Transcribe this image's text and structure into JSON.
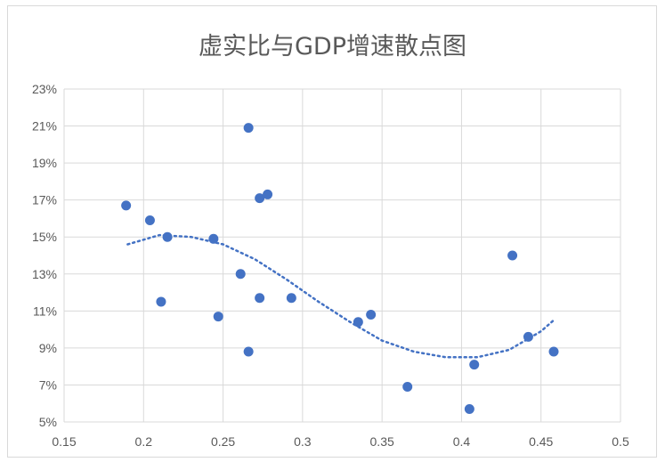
{
  "chart_data": {
    "type": "scatter",
    "title": "虚实比与GDP增速散点图",
    "xlim": [
      0.15,
      0.5
    ],
    "ylim": [
      0.05,
      0.23
    ],
    "x_ticks": [
      "0.15",
      "0.2",
      "0.25",
      "0.3",
      "0.35",
      "0.4",
      "0.45",
      "0.5"
    ],
    "y_ticks": [
      "5%",
      "7%",
      "9%",
      "11%",
      "13%",
      "15%",
      "17%",
      "19%",
      "21%",
      "23%"
    ],
    "grid": true,
    "legend": "none",
    "colors": {
      "points": "#4472c4",
      "trendline": "#4472c4",
      "grid": "#d9d9d9"
    },
    "points": [
      {
        "x": 0.189,
        "y": 0.167
      },
      {
        "x": 0.204,
        "y": 0.159
      },
      {
        "x": 0.215,
        "y": 0.15
      },
      {
        "x": 0.211,
        "y": 0.115
      },
      {
        "x": 0.244,
        "y": 0.149
      },
      {
        "x": 0.247,
        "y": 0.107
      },
      {
        "x": 0.261,
        "y": 0.13
      },
      {
        "x": 0.266,
        "y": 0.209
      },
      {
        "x": 0.266,
        "y": 0.088
      },
      {
        "x": 0.273,
        "y": 0.171
      },
      {
        "x": 0.278,
        "y": 0.173
      },
      {
        "x": 0.273,
        "y": 0.117
      },
      {
        "x": 0.293,
        "y": 0.117
      },
      {
        "x": 0.335,
        "y": 0.104
      },
      {
        "x": 0.343,
        "y": 0.108
      },
      {
        "x": 0.366,
        "y": 0.069
      },
      {
        "x": 0.405,
        "y": 0.057
      },
      {
        "x": 0.408,
        "y": 0.081
      },
      {
        "x": 0.432,
        "y": 0.14
      },
      {
        "x": 0.442,
        "y": 0.096
      },
      {
        "x": 0.458,
        "y": 0.088
      }
    ],
    "trendline": {
      "type": "polynomial",
      "x": [
        0.19,
        0.21,
        0.23,
        0.25,
        0.27,
        0.29,
        0.31,
        0.33,
        0.35,
        0.37,
        0.39,
        0.41,
        0.43,
        0.45,
        0.458
      ],
      "y": [
        0.146,
        0.151,
        0.15,
        0.146,
        0.138,
        0.127,
        0.115,
        0.104,
        0.094,
        0.088,
        0.085,
        0.085,
        0.089,
        0.099,
        0.105
      ]
    }
  }
}
